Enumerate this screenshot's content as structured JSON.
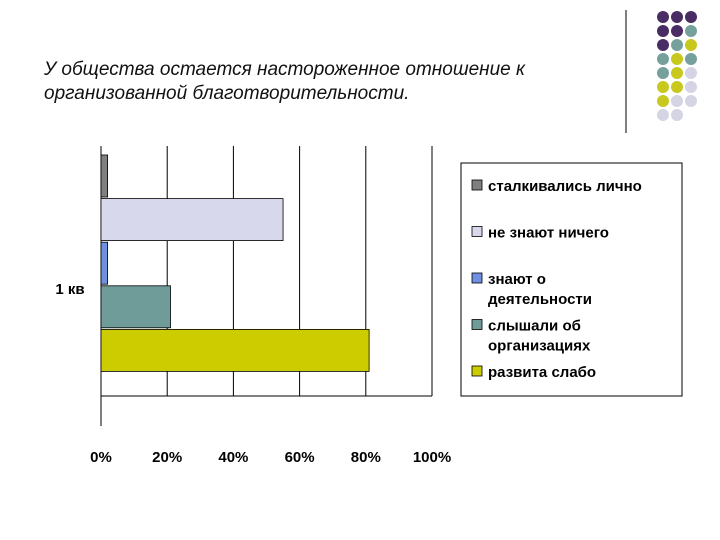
{
  "slide": {
    "title_lines": [
      "У общества остается настороженное отношение к",
      "организованной благотворительности."
    ]
  },
  "decoration": {
    "dot_colors": [
      "#4a2c64",
      "#76a09c",
      "#c8c81e",
      "#d4d4e4"
    ]
  },
  "chart_data": {
    "type": "bar",
    "orientation": "horizontal",
    "categories": [
      "1 кв"
    ],
    "series": [
      {
        "name": "сталкивались лично",
        "values": [
          2
        ],
        "color": "#808080"
      },
      {
        "name": "не знают ничего",
        "values": [
          55
        ],
        "color": "#d8d8ec"
      },
      {
        "name": "знают о деятельности",
        "values": [
          2
        ],
        "color": "#6f8fe0"
      },
      {
        "name": "слышали об организациях",
        "values": [
          21
        ],
        "color": "#6f9c98"
      },
      {
        "name": "развита слабо",
        "values": [
          81
        ],
        "color": "#cccc00"
      }
    ],
    "x_ticks": [
      "0%",
      "20%",
      "40%",
      "60%",
      "80%",
      "100%"
    ],
    "xlim": [
      0,
      100
    ],
    "grid": true,
    "legend_position": "right",
    "legend_lines": [
      [
        "сталкивались лично"
      ],
      [
        "не знают ничего"
      ],
      [
        "знают о",
        "деятельности"
      ],
      [
        "слышали об",
        "организациях"
      ],
      [
        "развита слабо"
      ]
    ]
  }
}
